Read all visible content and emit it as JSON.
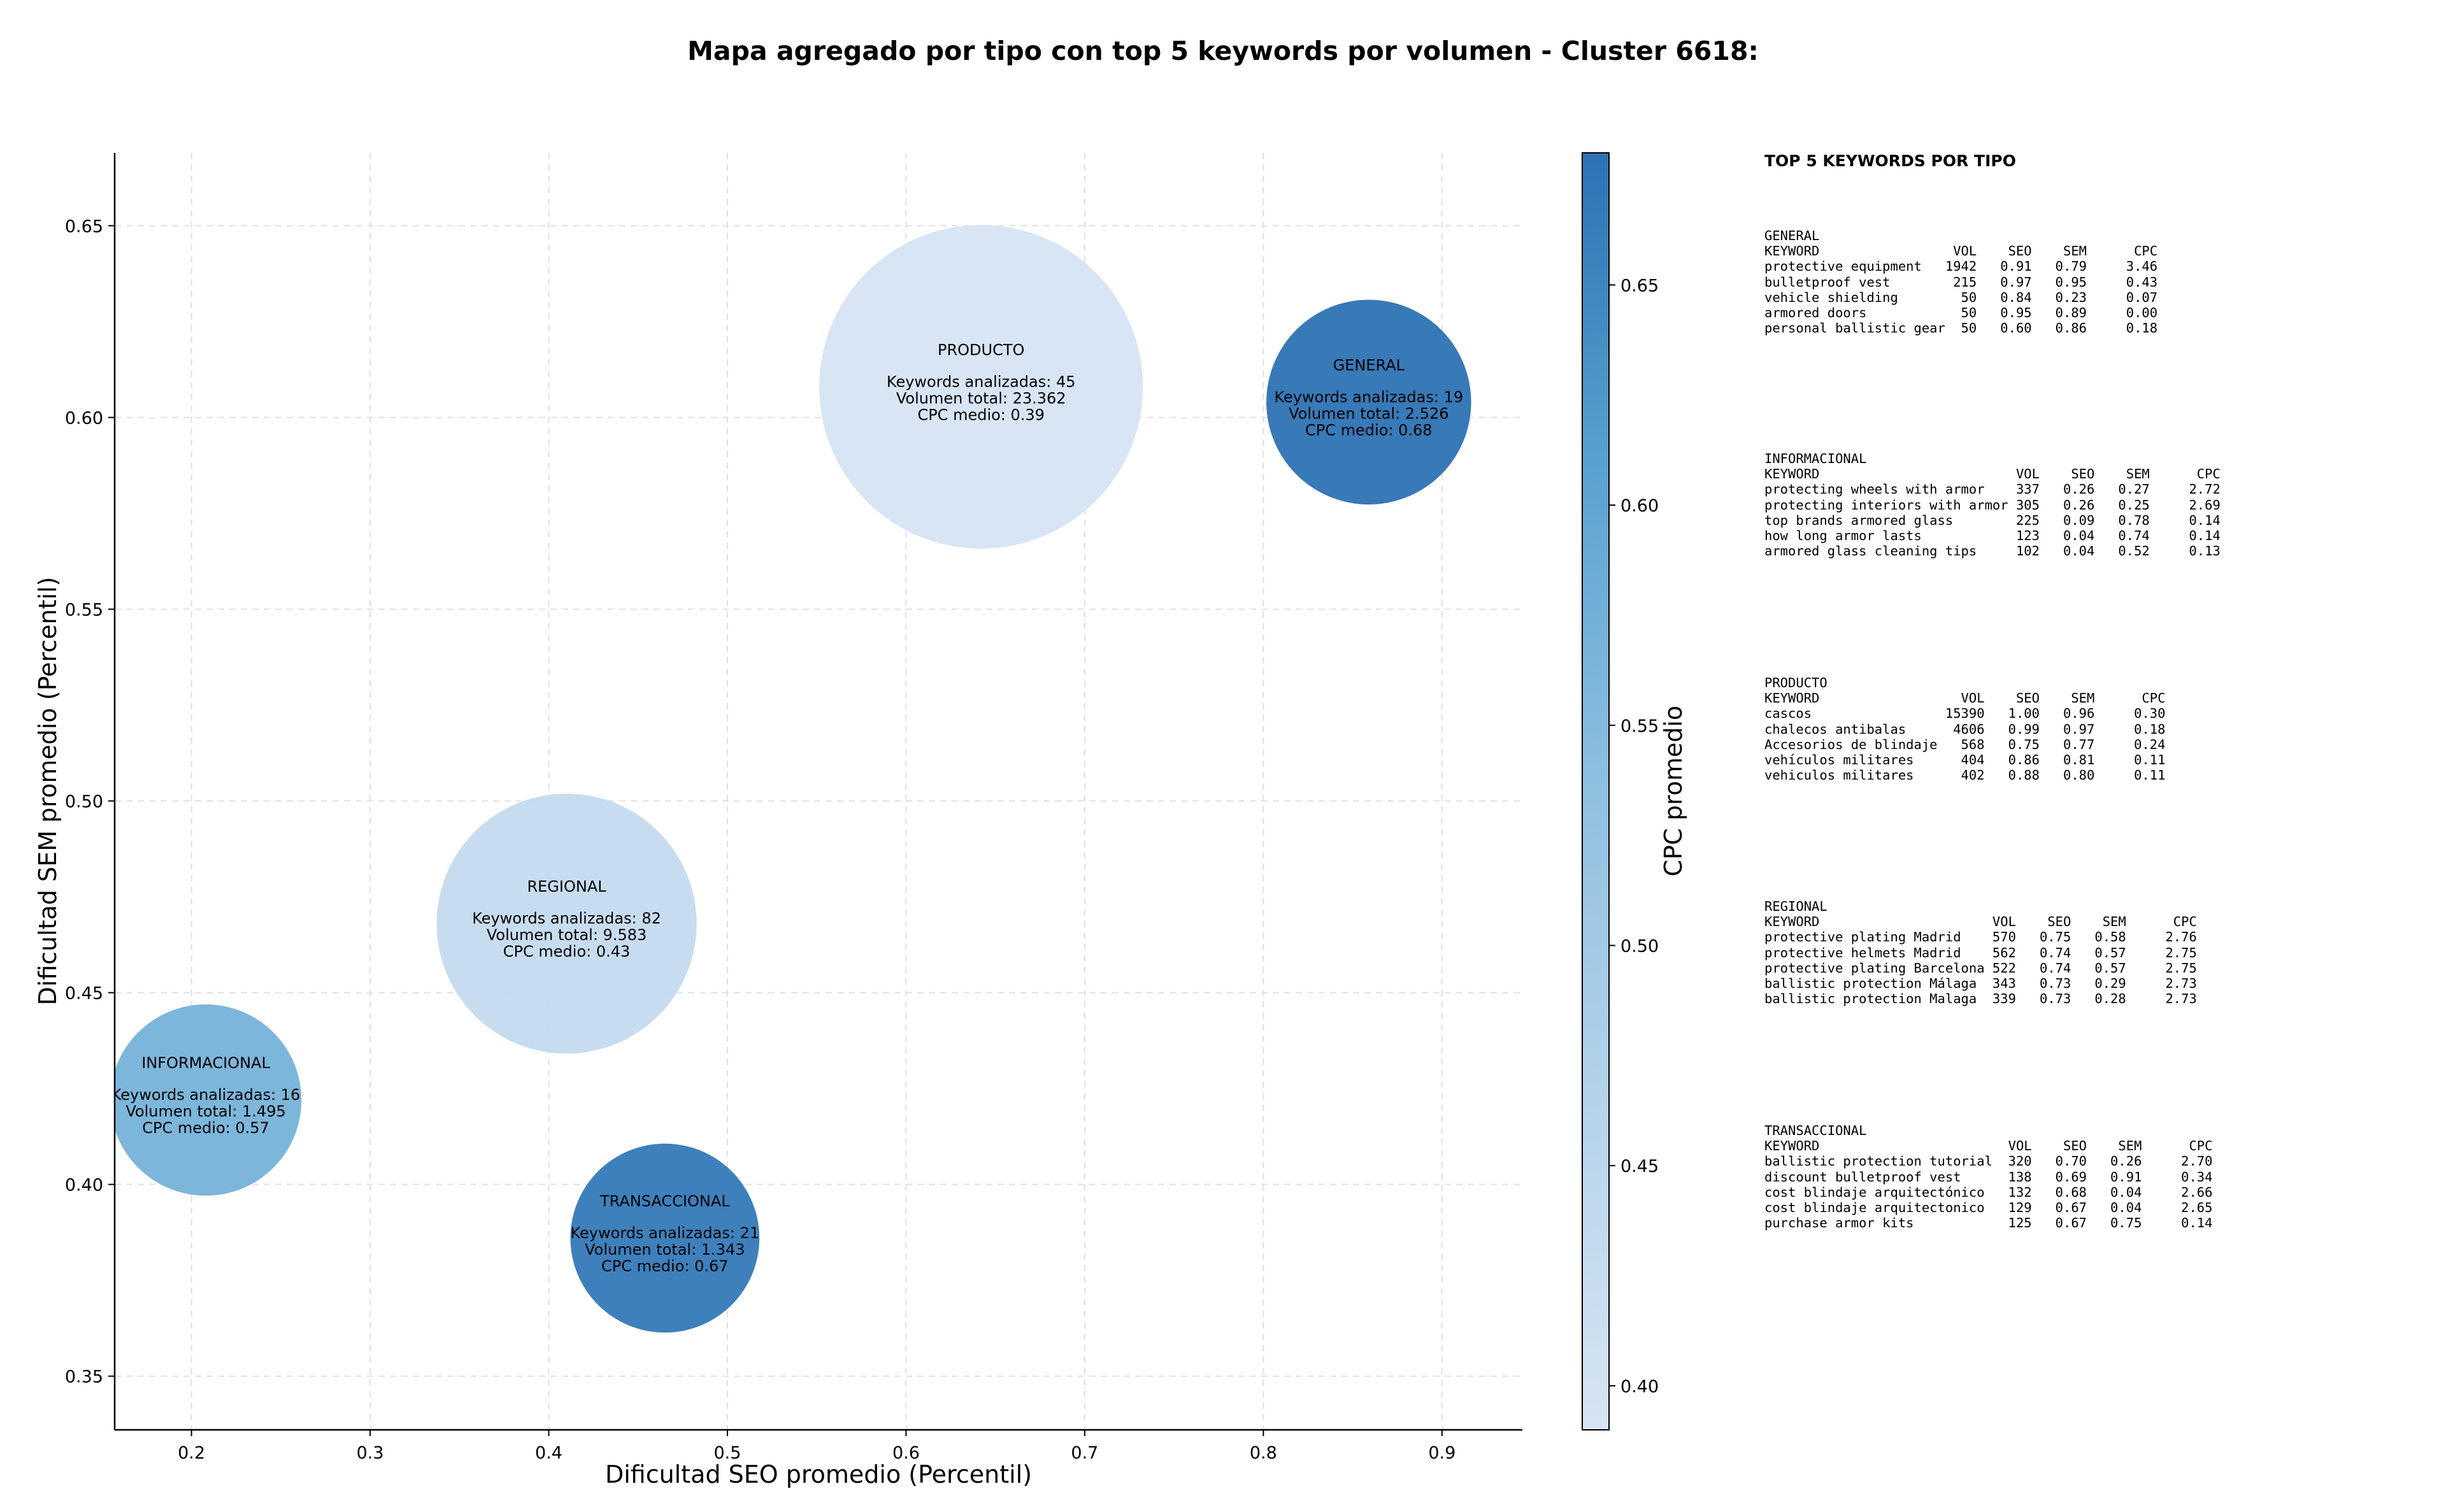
{
  "chart_data": {
    "type": "scatter",
    "title": "Mapa agregado por tipo con top 5 keywords por volumen - Cluster 6618:",
    "xlabel": "Dificultad SEO promedio (Percentil)",
    "ylabel": "Dificultad SEM promedio (Percentil)",
    "colorbar_label": "CPC promedio",
    "xlim": [
      0.157,
      0.945
    ],
    "ylim": [
      0.336,
      0.669
    ],
    "x_ticks": [
      "0.2",
      "0.3",
      "0.4",
      "0.5",
      "0.6",
      "0.7",
      "0.8",
      "0.9"
    ],
    "y_ticks": [
      "0.35",
      "0.40",
      "0.45",
      "0.50",
      "0.55",
      "0.60",
      "0.65"
    ],
    "colorbar_ticks": [
      "0.40",
      "0.45",
      "0.50",
      "0.55",
      "0.60",
      "0.65"
    ],
    "colorbar_range": [
      0.39,
      0.68
    ],
    "grid": true,
    "points": [
      {
        "name": "PRODUCTO",
        "x": 0.642,
        "y": 0.608,
        "cpc": 0.39,
        "keywords_line": "Keywords analizadas: 45",
        "volume_line": "Volumen total: 23.362",
        "cpc_line": "CPC medio: 0.39",
        "volume": 23362
      },
      {
        "name": "GENERAL",
        "x": 0.859,
        "y": 0.604,
        "cpc": 0.68,
        "keywords_line": "Keywords analizadas: 19",
        "volume_line": "Volumen total: 2.526",
        "cpc_line": "CPC medio: 0.68",
        "volume": 2526
      },
      {
        "name": "REGIONAL",
        "x": 0.41,
        "y": 0.468,
        "cpc": 0.43,
        "keywords_line": "Keywords analizadas: 82",
        "volume_line": "Volumen total: 9.583",
        "cpc_line": "CPC medio: 0.43",
        "volume": 9583
      },
      {
        "name": "INFORMACIONAL",
        "x": 0.208,
        "y": 0.422,
        "cpc": 0.57,
        "keywords_line": "Keywords analizadas: 16",
        "volume_line": "Volumen total: 1.495",
        "cpc_line": "CPC medio: 0.57",
        "volume": 1495
      },
      {
        "name": "TRANSACCIONAL",
        "x": 0.465,
        "y": 0.386,
        "cpc": 0.67,
        "keywords_line": "Keywords analizadas: 21",
        "volume_line": "Volumen total: 1.343",
        "cpc_line": "CPC medio: 0.67",
        "volume": 1343
      }
    ],
    "colors": {
      "cmap_low": "#d6e4f3",
      "cmap_mid": "#6aaed6",
      "cmap_high": "#2d72b4",
      "grid": "#e0e0e0",
      "axis": "#000000"
    }
  },
  "tables": {
    "title": "TOP 5 KEYWORDS POR TIPO",
    "blocks": [
      {
        "name": "GENERAL",
        "header": "KEYWORD                 VOL    SEO    SEM      CPC",
        "rows": [
          "protective equipment   1942   0.91   0.79     3.46",
          "bulletproof vest        215   0.97   0.95     0.43",
          "vehicle shielding        50   0.84   0.23     0.07",
          "armored doors            50   0.95   0.89     0.00",
          "personal ballistic gear  50   0.60   0.86     0.18"
        ]
      },
      {
        "name": "INFORMACIONAL",
        "header": "KEYWORD                         VOL    SEO    SEM      CPC",
        "rows": [
          "protecting wheels with armor    337   0.26   0.27     2.72",
          "protecting interiors with armor 305   0.26   0.25     2.69",
          "top brands armored glass        225   0.09   0.78     0.14",
          "how long armor lasts            123   0.04   0.74     0.14",
          "armored glass cleaning tips     102   0.04   0.52     0.13"
        ]
      },
      {
        "name": "PRODUCTO",
        "header": "KEYWORD                  VOL    SEO    SEM      CPC",
        "rows": [
          "cascos                 15390   1.00   0.96     0.30",
          "chalecos antibalas      4606   0.99   0.97     0.18",
          "Accesorios de blindaje   568   0.75   0.77     0.24",
          "vehículos militares      404   0.86   0.81     0.11",
          "vehiculos militares      402   0.88   0.80     0.11"
        ]
      },
      {
        "name": "REGIONAL",
        "header": "KEYWORD                      VOL    SEO    SEM      CPC",
        "rows": [
          "protective plating Madrid    570   0.75   0.58     2.76",
          "protective helmets Madrid    562   0.74   0.57     2.75",
          "protective plating Barcelona 522   0.74   0.57     2.75",
          "ballistic protection Málaga  343   0.73   0.29     2.73",
          "ballistic protection Malaga  339   0.73   0.28     2.73"
        ]
      },
      {
        "name": "TRANSACCIONAL",
        "header": "KEYWORD                        VOL    SEO    SEM      CPC",
        "rows": [
          "ballistic protection tutorial  320   0.70   0.26     2.70",
          "discount bulletproof vest      138   0.69   0.91     0.34",
          "cost blindaje arquitectónico   132   0.68   0.04     2.66",
          "cost blindaje arquitectonico   129   0.67   0.04     2.65",
          "purchase armor kits            125   0.67   0.75     0.14"
        ]
      }
    ]
  }
}
